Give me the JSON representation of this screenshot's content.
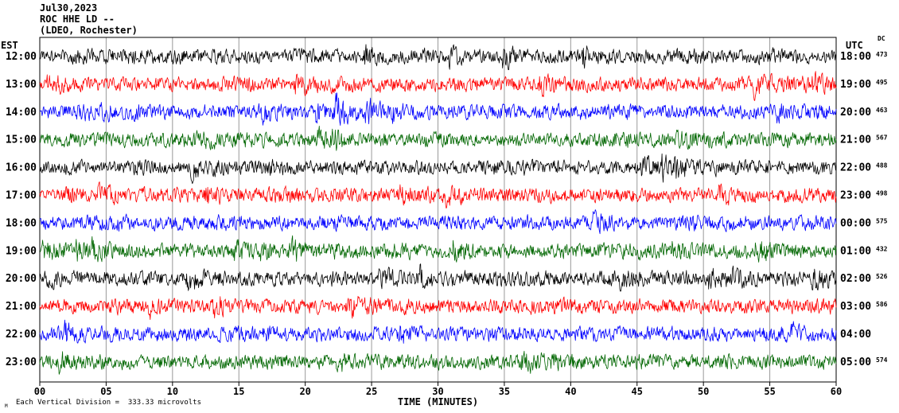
{
  "header": {
    "date": "Jul30,2023",
    "station": "ROC HHE LD --",
    "location": "(LDEO, Rochester)"
  },
  "axes": {
    "left_label": "EST",
    "right_label": "UTC",
    "dc_label": "DC",
    "x_title": "TIME (MINUTES)",
    "x_ticks": [
      "00",
      "05",
      "10",
      "15",
      "20",
      "25",
      "30",
      "35",
      "40",
      "45",
      "50",
      "55",
      "60"
    ]
  },
  "footer": {
    "scale_note": "Each Vertical Division =  333.33 microvolts",
    "watermark": "M"
  },
  "chart_data": {
    "type": "line",
    "description": "Helicorder (webicorder) seismogram: twelve 60-minute waveform traces, one per hour row, continuous high-frequency seismic noise with intermittent bursts",
    "title": "ROC HHE LD -- (LDEO, Rochester) Jul30,2023",
    "xlabel": "TIME (MINUTES)",
    "x_range_minutes": [
      0,
      60
    ],
    "minute_gridline_interval": 5,
    "grid": true,
    "colors_cycle": [
      "#000000",
      "#ff0000",
      "#0000ff",
      "#006600"
    ],
    "rows": [
      {
        "est": "12:00",
        "utc": "18:00",
        "dc": "473",
        "color": "#000000"
      },
      {
        "est": "13:00",
        "utc": "19:00",
        "dc": "495",
        "color": "#ff0000"
      },
      {
        "est": "14:00",
        "utc": "20:00",
        "dc": "463",
        "color": "#0000ff"
      },
      {
        "est": "15:00",
        "utc": "21:00",
        "dc": "567",
        "color": "#006600"
      },
      {
        "est": "16:00",
        "utc": "22:00",
        "dc": "488",
        "color": "#000000"
      },
      {
        "est": "17:00",
        "utc": "23:00",
        "dc": "498",
        "color": "#ff0000"
      },
      {
        "est": "18:00",
        "utc": "00:00",
        "dc": "575",
        "color": "#0000ff"
      },
      {
        "est": "19:00",
        "utc": "01:00",
        "dc": "432",
        "color": "#006600"
      },
      {
        "est": "20:00",
        "utc": "02:00",
        "dc": "526",
        "color": "#000000"
      },
      {
        "est": "21:00",
        "utc": "03:00",
        "dc": "586",
        "color": "#ff0000"
      },
      {
        "est": "22:00",
        "utc": "04:00",
        "dc": "",
        "color": "#0000ff"
      },
      {
        "est": "23:00",
        "utc": "05:00",
        "dc": "574",
        "color": "#006600"
      }
    ]
  }
}
